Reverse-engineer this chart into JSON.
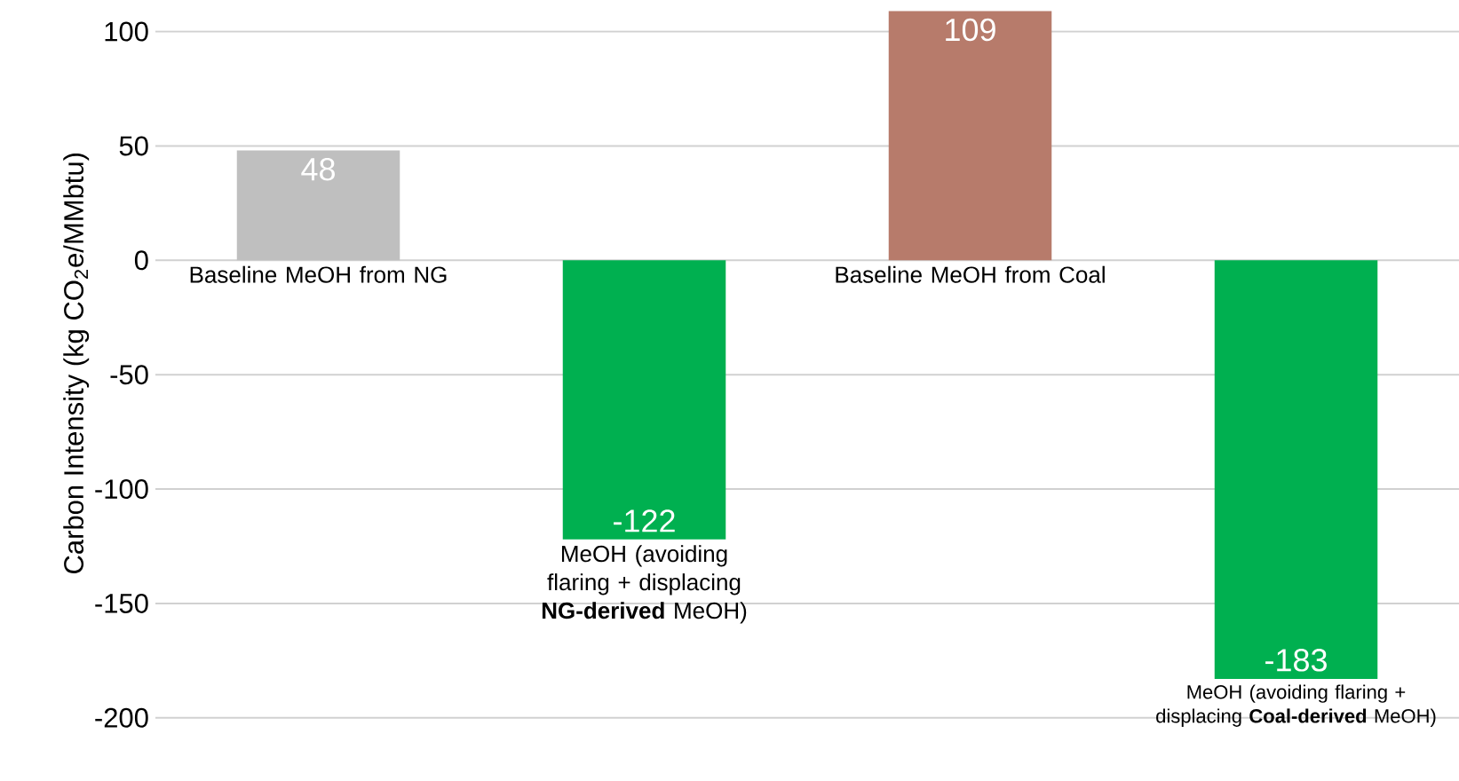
{
  "chart_data": {
    "type": "bar",
    "ylabel": "Carbon Intensity (kg CO$_{2}$e/MMbtu)",
    "categories": [
      "Baseline MeOH from NG",
      "MeOH (avoiding flaring + displacing **NG-derived** MeOH)",
      "Baseline MeOH from Coal",
      "MeOH (avoiding flaring + displacing **Coal-derived** MeOH)"
    ],
    "values": [
      48,
      -122,
      109,
      -183
    ],
    "colors": [
      "#bfbfbf",
      "#00b050",
      "#b77b6b",
      "#00b050"
    ],
    "ylim": [
      -200,
      110
    ],
    "yticks": [
      -200,
      -150,
      -100,
      -50,
      0,
      50,
      100
    ],
    "grid": "y",
    "data_labels": true
  }
}
